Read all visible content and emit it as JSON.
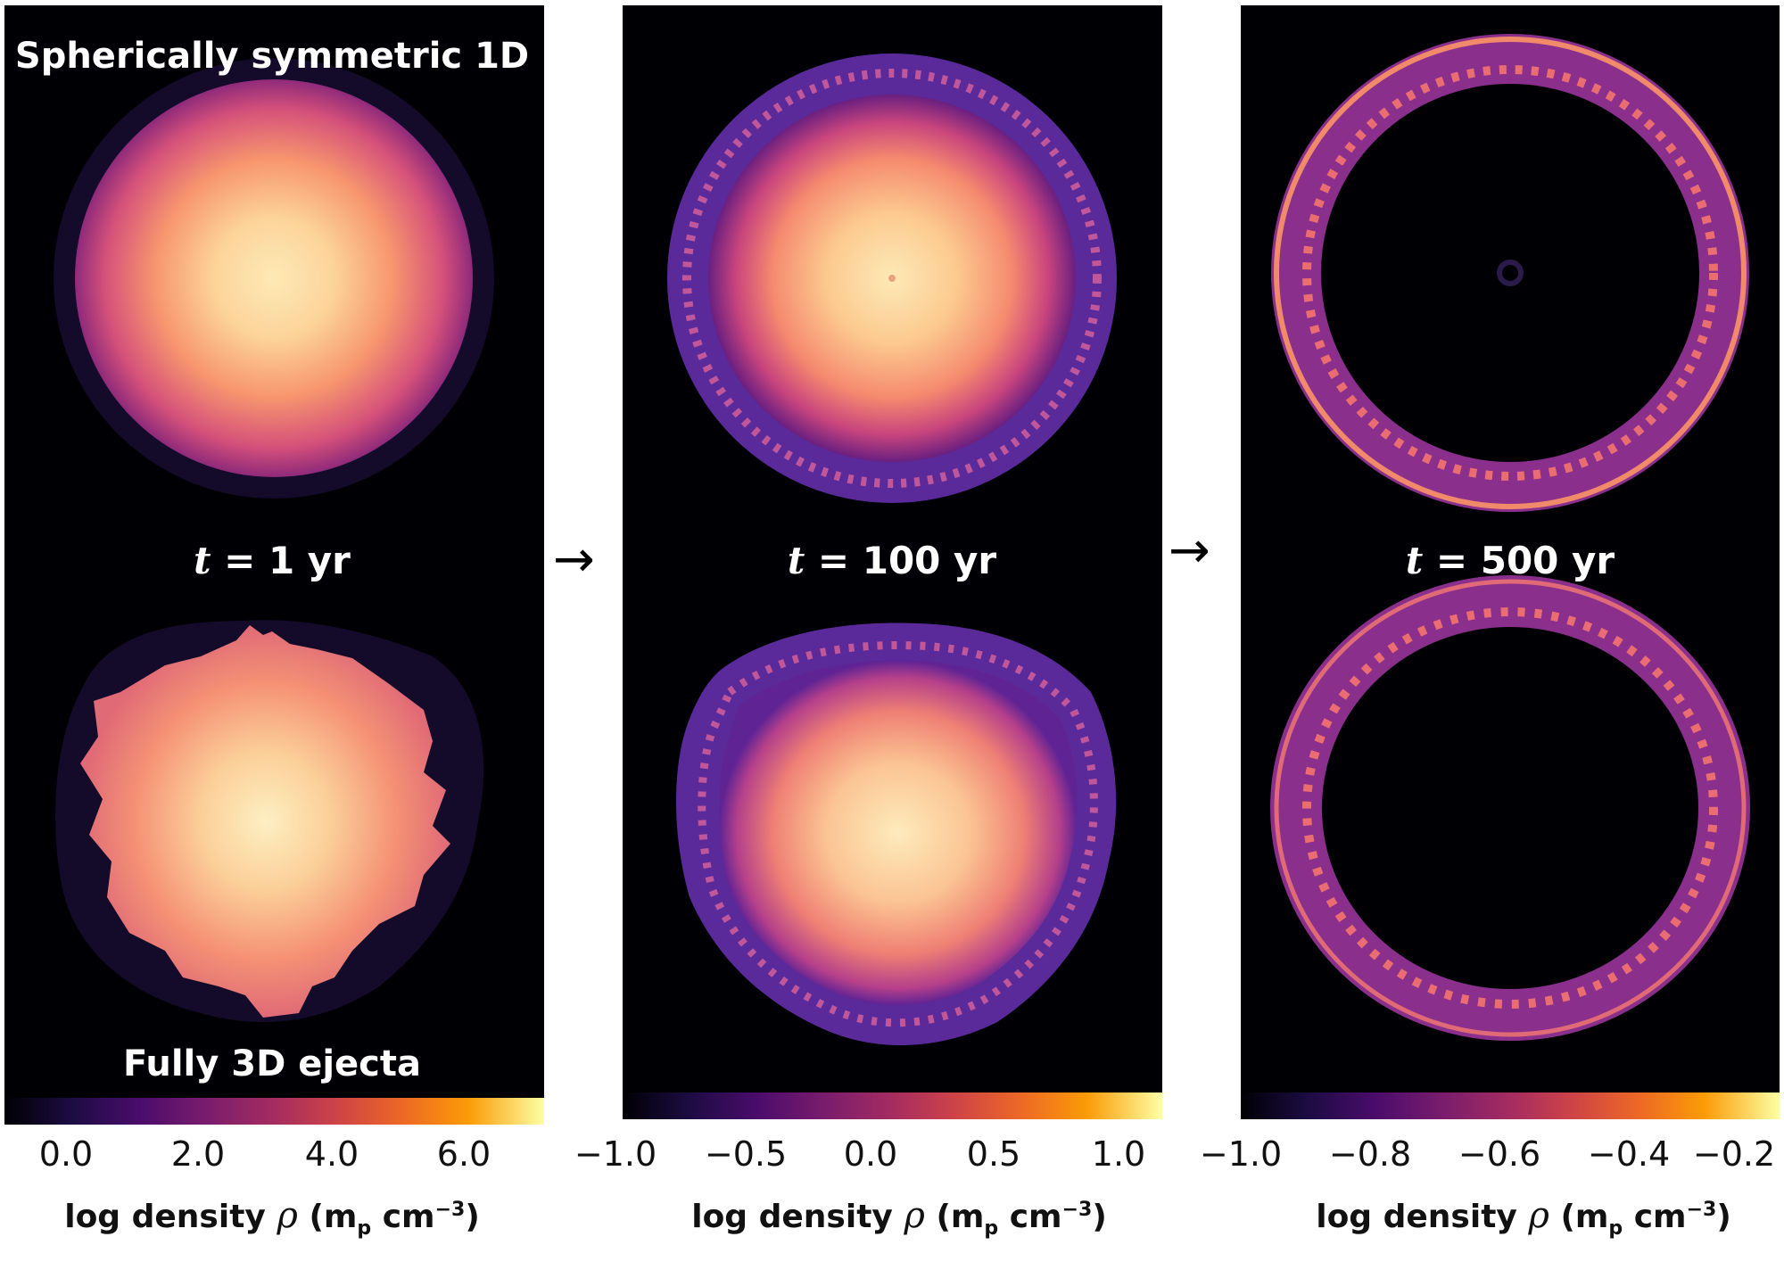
{
  "panels": [
    {
      "time_var": "t",
      "time_text": " = 1 yr",
      "top_label": "Spherically symmetric 1D",
      "bottom_label": "Fully 3D ejecta",
      "colorbar": {
        "ticks": [
          "0.0",
          "2.0",
          "4.0",
          "6.0"
        ],
        "title_prefix": "log density ",
        "title_symbol": "ρ",
        "title_unit_open": " (m",
        "title_unit_sub": "p",
        "title_unit_mid": " cm",
        "title_unit_sup": "−3",
        "title_unit_close": ")"
      }
    },
    {
      "time_var": "t",
      "time_text": " = 100 yr",
      "colorbar": {
        "ticks": [
          "−1.0",
          "−0.5",
          "0.0",
          "0.5",
          "1.0"
        ],
        "title_prefix": "log density ",
        "title_symbol": "ρ",
        "title_unit_open": " (m",
        "title_unit_sub": "p",
        "title_unit_mid": " cm",
        "title_unit_sup": "−3",
        "title_unit_close": ")"
      }
    },
    {
      "time_var": "t",
      "time_text": " = 500 yr",
      "colorbar": {
        "ticks": [
          "−1.0",
          "−0.8",
          "−0.6",
          "−0.4",
          "−0.2"
        ],
        "title_prefix": "log density ",
        "title_symbol": "ρ",
        "title_unit_open": " (m",
        "title_unit_sub": "p",
        "title_unit_mid": " cm",
        "title_unit_sup": "−3",
        "title_unit_close": ")"
      }
    }
  ],
  "arrows": [
    "→",
    "→"
  ],
  "colors": {
    "background": "#000004",
    "colormap": "magma"
  }
}
